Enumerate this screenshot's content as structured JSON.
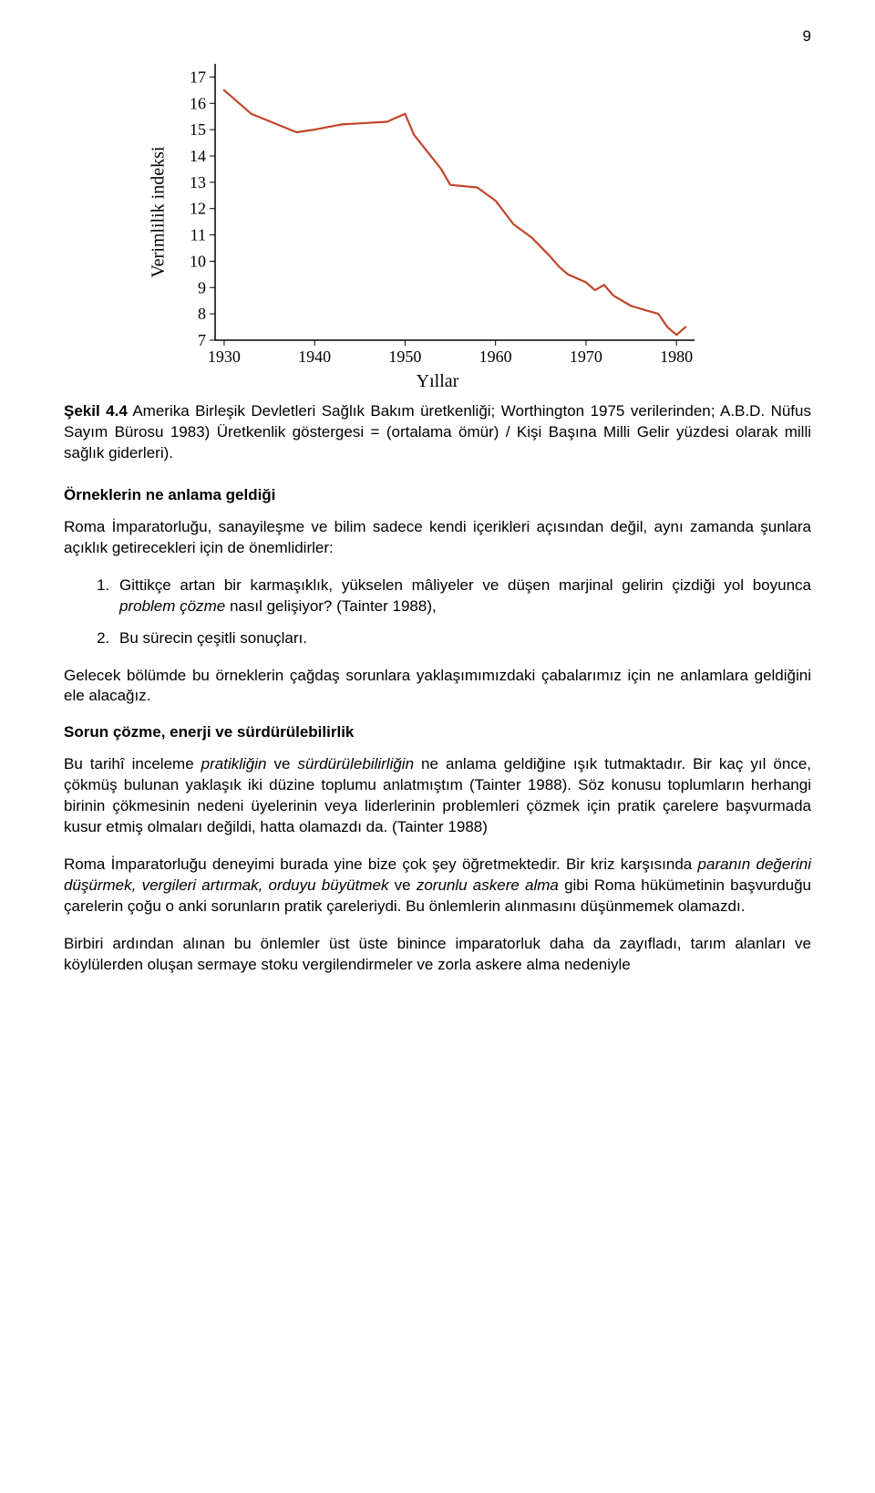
{
  "page_number": "9",
  "chart": {
    "type": "line",
    "y_axis_label": "Verimlilik indeksi",
    "x_axis_label": "Yıllar",
    "x_ticks": [
      1930,
      1940,
      1950,
      1960,
      1970,
      1980
    ],
    "y_ticks": [
      7,
      8,
      9,
      10,
      11,
      12,
      13,
      14,
      15,
      16,
      17
    ],
    "xlim": [
      1929,
      1982
    ],
    "ylim": [
      7,
      17.5
    ],
    "line_color": "#c0462a",
    "line_width": 2.2,
    "axis_color": "#000000",
    "background_color": "#ffffff",
    "label_fontsize": 20,
    "tick_fontsize": 18,
    "data_points": [
      [
        1930,
        16.5
      ],
      [
        1933,
        15.6
      ],
      [
        1938,
        14.9
      ],
      [
        1940,
        15.0
      ],
      [
        1943,
        15.2
      ],
      [
        1948,
        15.3
      ],
      [
        1950,
        15.6
      ],
      [
        1951,
        14.8
      ],
      [
        1954,
        13.5
      ],
      [
        1955,
        12.9
      ],
      [
        1958,
        12.8
      ],
      [
        1960,
        12.3
      ],
      [
        1962,
        11.4
      ],
      [
        1964,
        10.9
      ],
      [
        1966,
        10.2
      ],
      [
        1967,
        9.8
      ],
      [
        1968,
        9.5
      ],
      [
        1970,
        9.2
      ],
      [
        1971,
        8.9
      ],
      [
        1972,
        9.1
      ],
      [
        1973,
        8.7
      ],
      [
        1975,
        8.3
      ],
      [
        1977,
        8.1
      ],
      [
        1978,
        8.0
      ],
      [
        1979,
        7.5
      ],
      [
        1980,
        7.2
      ],
      [
        1981,
        7.5
      ]
    ]
  },
  "caption_bold": "Şekil 4.4",
  "caption_text": " Amerika Birleşik Devletleri Sağlık Bakım üretkenliği; Worthington 1975 verilerinden; A.B.D. Nüfus Sayım Bürosu 1983) Üretkenlik göstergesi = (ortalama ömür) / Kişi Başına Milli Gelir yüzdesi olarak milli sağlık giderleri).",
  "heading1": "Örneklerin  ne anlama geldiği",
  "para1": "Roma İmparatorluğu, sanayileşme ve bilim sadece kendi içerikleri açısından değil, aynı zamanda şunlara açıklık getirecekleri için de önemlidirler:",
  "list": [
    {
      "pre": "Gittikçe artan bir karmaşıklık, yükselen mâliyeler ve düşen marjinal gelirin çizdiği yol boyunca ",
      "italic": "problem çözme",
      "post": " nasıl gelişiyor? (Tainter 1988),"
    },
    {
      "pre": "Bu sürecin çeşitli sonuçları.",
      "italic": "",
      "post": ""
    }
  ],
  "para2": "Gelecek bölümde bu örneklerin çağdaş sorunlara yaklaşımımızdaki çabalarımız için ne anlamlara geldiğini ele alacağız.",
  "heading2": "Sorun çözme, enerji ve sürdürülebilirlik",
  "para3_pre": "Bu tarihî inceleme ",
  "para3_it1": "pratikliğin",
  "para3_mid1": " ve ",
  "para3_it2": "sürdürülebilirliğin",
  "para3_post": " ne anlama geldiğine ışık tutmaktadır. Bir kaç yıl önce, çökmüş bulunan yaklaşık iki düzine toplumu anlatmıştım (Tainter 1988). Söz konusu toplumların herhangi birinin çökmesinin nedeni üyelerinin veya liderlerinin problemleri çözmek için pratik çarelere başvurmada kusur etmiş olmaları değildi, hatta olamazdı da. (Tainter 1988)",
  "para4_pre": "Roma İmparatorluğu deneyimi burada yine bize çok şey öğretmektedir. Bir kriz karşısında ",
  "para4_it1": "paranın değerini düşürmek, vergileri artırmak, orduyu büyütmek",
  "para4_mid": " ve ",
  "para4_it2": "zorunlu askere alma",
  "para4_post": " gibi Roma hükümetinin başvurduğu çarelerin çoğu o anki sorunların pratik çareleriydi. Bu önlemlerin alınmasını düşünmemek olamazdı.",
  "para5": "Birbiri ardından alınan bu önlemler üst üste binince imparatorluk daha da zayıfladı, tarım alanları ve köylülerden oluşan sermaye stoku vergilendirmeler ve zorla askere alma nedeniyle"
}
